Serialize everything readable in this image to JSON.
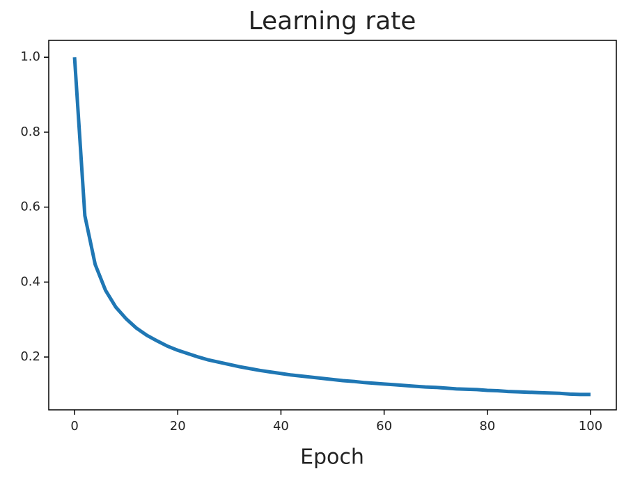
{
  "chart_data": {
    "type": "line",
    "title": "Learning rate",
    "x_label": "Epoch",
    "x": [
      0,
      2,
      4,
      6,
      8,
      10,
      12,
      14,
      16,
      18,
      20,
      22,
      24,
      26,
      28,
      30,
      32,
      34,
      36,
      38,
      40,
      42,
      44,
      46,
      48,
      50,
      52,
      54,
      56,
      58,
      60,
      62,
      64,
      66,
      68,
      70,
      72,
      74,
      76,
      78,
      80,
      82,
      84,
      86,
      88,
      90,
      92,
      94,
      96,
      98,
      100
    ],
    "values": [
      1.0,
      0.577,
      0.447,
      0.378,
      0.333,
      0.302,
      0.277,
      0.258,
      0.243,
      0.229,
      0.218,
      0.209,
      0.2,
      0.192,
      0.186,
      0.18,
      0.174,
      0.169,
      0.164,
      0.16,
      0.156,
      0.152,
      0.149,
      0.146,
      0.143,
      0.14,
      0.137,
      0.135,
      0.132,
      0.13,
      0.128,
      0.126,
      0.124,
      0.122,
      0.12,
      0.119,
      0.117,
      0.115,
      0.114,
      0.113,
      0.111,
      0.11,
      0.108,
      0.107,
      0.106,
      0.105,
      0.104,
      0.103,
      0.101,
      0.1,
      0.1
    ],
    "color": "#1f77b4",
    "xlim": [
      -5,
      105
    ],
    "xticks": [
      0,
      20,
      40,
      60,
      80,
      100
    ],
    "ylim": [
      0.059,
      1.045
    ],
    "yticks": [
      0.2,
      0.4,
      0.6,
      0.8,
      {
        "value": 1,
        "label": "1.0"
      }
    ],
    "grid": false
  }
}
